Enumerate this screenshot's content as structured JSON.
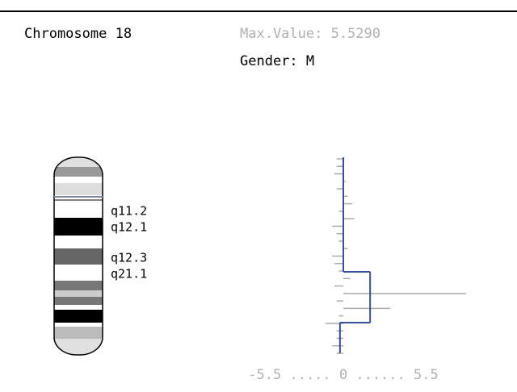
{
  "header": {
    "title": "Chromosome 18",
    "max_value": "Max.Value: 5.5290",
    "gender": "Gender: M"
  },
  "ideogram": {
    "band_labels": [
      "q11.2",
      "q12.1",
      "q12.3",
      "q21.1"
    ]
  },
  "profile": {
    "axis_label": "-5.5 ..... 0 ...... 5.5",
    "xlim": [
      -5.5,
      5.5
    ],
    "values": [
      -0.3,
      -0.3,
      -0.4,
      0.1,
      -0.3,
      0.2,
      0.4,
      -0.2,
      0.5,
      -0.5,
      -0.3,
      -0.2,
      0.2,
      -0.5,
      -0.4,
      -0.2,
      0.3,
      -0.4,
      5.5,
      -0.3,
      2.1,
      -0.2,
      -0.8,
      -0.3,
      -0.3,
      -0.5,
      -0.3
    ],
    "segments": [
      0,
      1.2,
      -0.15
    ]
  }
}
